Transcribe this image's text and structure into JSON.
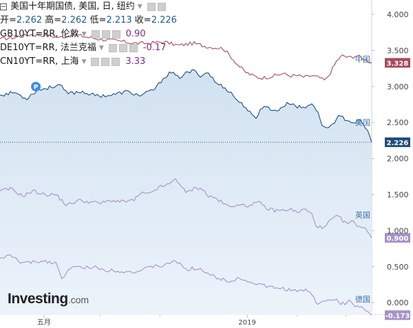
{
  "header": {
    "title": "美国十年期国债, 美国, 日, 纽约",
    "ohlc": [
      {
        "label": "开=",
        "value": "2.262"
      },
      {
        "label": "高=",
        "value": "2.262"
      },
      {
        "label": "低=",
        "value": "2.213"
      },
      {
        "label": "收=",
        "value": "2.226"
      }
    ]
  },
  "legend": [
    {
      "symbol": "GB10YT=RR, 伦敦",
      "value": "0.90",
      "color": "#7b2c7e"
    },
    {
      "symbol": "DE10YT=RR, 法兰克福",
      "value": "-0.17",
      "color": "#7b2c7e"
    },
    {
      "symbol": "CN10YT=RR, 上海",
      "value": "3.33",
      "color": "#7b2c7e"
    }
  ],
  "logo": {
    "main": "Investing",
    "suffix": ".com"
  },
  "marker": {
    "label": "P"
  },
  "chart_data": {
    "type": "line",
    "ylim": [
      -0.17,
      4.2
    ],
    "yticks": [
      "4.000",
      "3.500",
      "3.000",
      "2.500",
      "2.000",
      "1.500",
      "1.000",
      "0.500",
      "0.000"
    ],
    "ytick_values": [
      4.0,
      3.5,
      3.0,
      2.5,
      2.0,
      1.5,
      1.0,
      0.5,
      0.0
    ],
    "xticks": [
      {
        "label": "五月",
        "pos": 0.118
      },
      {
        "label": "2019",
        "pos": 0.665
      }
    ],
    "current_line": 2.226,
    "series": [
      {
        "name": "中国",
        "color": "#a84a5d",
        "fill": false,
        "last": "3.328",
        "label_y": 3.38,
        "anchors": [
          [
            0,
            3.66
          ],
          [
            0.04,
            3.68
          ],
          [
            0.08,
            3.72
          ],
          [
            0.12,
            3.71
          ],
          [
            0.16,
            3.68
          ],
          [
            0.2,
            3.72
          ],
          [
            0.24,
            3.68
          ],
          [
            0.28,
            3.65
          ],
          [
            0.32,
            3.63
          ],
          [
            0.36,
            3.6
          ],
          [
            0.4,
            3.6
          ],
          [
            0.44,
            3.62
          ],
          [
            0.48,
            3.57
          ],
          [
            0.52,
            3.6
          ],
          [
            0.56,
            3.55
          ],
          [
            0.6,
            3.53
          ],
          [
            0.62,
            3.42
          ],
          [
            0.64,
            3.3
          ],
          [
            0.66,
            3.2
          ],
          [
            0.68,
            3.15
          ],
          [
            0.7,
            3.12
          ],
          [
            0.72,
            3.13
          ],
          [
            0.74,
            3.15
          ],
          [
            0.76,
            3.18
          ],
          [
            0.78,
            3.15
          ],
          [
            0.8,
            3.15
          ],
          [
            0.82,
            3.13
          ],
          [
            0.84,
            3.15
          ],
          [
            0.86,
            3.12
          ],
          [
            0.875,
            3.08
          ],
          [
            0.89,
            3.2
          ],
          [
            0.905,
            3.35
          ],
          [
            0.92,
            3.43
          ],
          [
            0.94,
            3.4
          ],
          [
            0.96,
            3.43
          ],
          [
            0.98,
            3.38
          ],
          [
            1.0,
            3.33
          ]
        ]
      },
      {
        "name": "美国",
        "color": "#1f4e79",
        "fill": true,
        "last": "2.226",
        "label_y": 2.5,
        "anchors": [
          [
            0,
            2.88
          ],
          [
            0.04,
            2.92
          ],
          [
            0.07,
            2.83
          ],
          [
            0.1,
            2.95
          ],
          [
            0.13,
            2.98
          ],
          [
            0.16,
            3.03
          ],
          [
            0.18,
            2.9
          ],
          [
            0.22,
            2.93
          ],
          [
            0.26,
            2.87
          ],
          [
            0.3,
            2.88
          ],
          [
            0.34,
            2.93
          ],
          [
            0.38,
            2.87
          ],
          [
            0.42,
            2.98
          ],
          [
            0.44,
            3.12
          ],
          [
            0.46,
            3.2
          ],
          [
            0.48,
            3.12
          ],
          [
            0.5,
            3.18
          ],
          [
            0.52,
            3.22
          ],
          [
            0.54,
            3.15
          ],
          [
            0.56,
            3.2
          ],
          [
            0.58,
            3.05
          ],
          [
            0.6,
            3.0
          ],
          [
            0.62,
            2.92
          ],
          [
            0.64,
            2.8
          ],
          [
            0.66,
            2.72
          ],
          [
            0.68,
            2.58
          ],
          [
            0.69,
            2.55
          ],
          [
            0.7,
            2.7
          ],
          [
            0.72,
            2.72
          ],
          [
            0.74,
            2.65
          ],
          [
            0.76,
            2.72
          ],
          [
            0.78,
            2.78
          ],
          [
            0.8,
            2.72
          ],
          [
            0.82,
            2.7
          ],
          [
            0.84,
            2.78
          ],
          [
            0.86,
            2.58
          ],
          [
            0.87,
            2.42
          ],
          [
            0.89,
            2.45
          ],
          [
            0.91,
            2.58
          ],
          [
            0.93,
            2.55
          ],
          [
            0.95,
            2.5
          ],
          [
            0.97,
            2.52
          ],
          [
            0.99,
            2.38
          ],
          [
            1.0,
            2.226
          ]
        ]
      },
      {
        "name": "英国",
        "color": "#a891c8",
        "fill": false,
        "last": "0.900",
        "label_y": 1.22,
        "anchors": [
          [
            0,
            1.55
          ],
          [
            0.03,
            1.58
          ],
          [
            0.06,
            1.48
          ],
          [
            0.09,
            1.55
          ],
          [
            0.12,
            1.5
          ],
          [
            0.15,
            1.5
          ],
          [
            0.18,
            1.35
          ],
          [
            0.21,
            1.42
          ],
          [
            0.24,
            1.4
          ],
          [
            0.27,
            1.38
          ],
          [
            0.3,
            1.42
          ],
          [
            0.33,
            1.4
          ],
          [
            0.36,
            1.42
          ],
          [
            0.38,
            1.52
          ],
          [
            0.4,
            1.5
          ],
          [
            0.42,
            1.58
          ],
          [
            0.44,
            1.62
          ],
          [
            0.46,
            1.65
          ],
          [
            0.47,
            1.73
          ],
          [
            0.48,
            1.68
          ],
          [
            0.5,
            1.52
          ],
          [
            0.52,
            1.58
          ],
          [
            0.54,
            1.6
          ],
          [
            0.56,
            1.48
          ],
          [
            0.58,
            1.45
          ],
          [
            0.6,
            1.38
          ],
          [
            0.62,
            1.32
          ],
          [
            0.64,
            1.38
          ],
          [
            0.66,
            1.33
          ],
          [
            0.68,
            1.38
          ],
          [
            0.7,
            1.38
          ],
          [
            0.72,
            1.3
          ],
          [
            0.74,
            1.28
          ],
          [
            0.76,
            1.28
          ],
          [
            0.78,
            1.3
          ],
          [
            0.8,
            1.25
          ],
          [
            0.82,
            1.3
          ],
          [
            0.84,
            1.22
          ],
          [
            0.85,
            1.08
          ],
          [
            0.87,
            1.02
          ],
          [
            0.89,
            1.15
          ],
          [
            0.91,
            1.2
          ],
          [
            0.93,
            1.1
          ],
          [
            0.95,
            1.12
          ],
          [
            0.97,
            1.05
          ],
          [
            0.99,
            1.0
          ],
          [
            1.0,
            0.9
          ]
        ]
      },
      {
        "name": "德国",
        "color": "#a891c8",
        "fill": false,
        "last": "-0.173",
        "label_y": 0.05,
        "anchors": [
          [
            0,
            0.62
          ],
          [
            0.03,
            0.65
          ],
          [
            0.06,
            0.55
          ],
          [
            0.09,
            0.56
          ],
          [
            0.12,
            0.58
          ],
          [
            0.15,
            0.55
          ],
          [
            0.17,
            0.32
          ],
          [
            0.19,
            0.5
          ],
          [
            0.22,
            0.48
          ],
          [
            0.25,
            0.5
          ],
          [
            0.28,
            0.45
          ],
          [
            0.31,
            0.45
          ],
          [
            0.34,
            0.43
          ],
          [
            0.37,
            0.43
          ],
          [
            0.4,
            0.48
          ],
          [
            0.42,
            0.52
          ],
          [
            0.44,
            0.5
          ],
          [
            0.46,
            0.56
          ],
          [
            0.47,
            0.6
          ],
          [
            0.48,
            0.55
          ],
          [
            0.5,
            0.45
          ],
          [
            0.52,
            0.48
          ],
          [
            0.54,
            0.47
          ],
          [
            0.56,
            0.4
          ],
          [
            0.58,
            0.35
          ],
          [
            0.6,
            0.32
          ],
          [
            0.62,
            0.3
          ],
          [
            0.64,
            0.35
          ],
          [
            0.66,
            0.3
          ],
          [
            0.68,
            0.28
          ],
          [
            0.7,
            0.25
          ],
          [
            0.72,
            0.22
          ],
          [
            0.74,
            0.2
          ],
          [
            0.76,
            0.2
          ],
          [
            0.78,
            0.18
          ],
          [
            0.8,
            0.15
          ],
          [
            0.82,
            0.18
          ],
          [
            0.84,
            0.12
          ],
          [
            0.85,
            0.0
          ],
          [
            0.86,
            -0.02
          ],
          [
            0.88,
            0.05
          ],
          [
            0.9,
            0.05
          ],
          [
            0.92,
            -0.02
          ],
          [
            0.94,
            0.02
          ],
          [
            0.96,
            -0.05
          ],
          [
            0.98,
            -0.08
          ],
          [
            1.0,
            -0.173
          ]
        ]
      }
    ]
  }
}
